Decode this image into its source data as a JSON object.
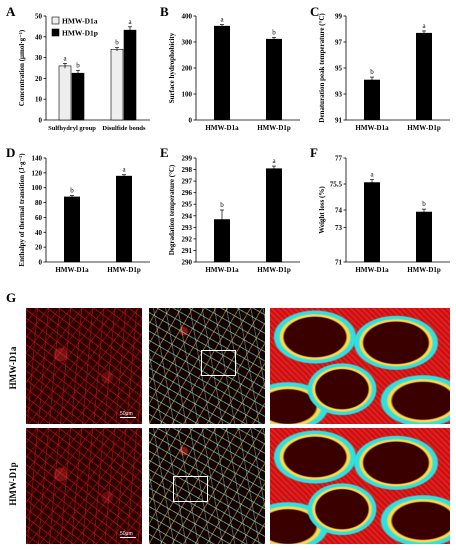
{
  "panel_letters": {
    "A": "A",
    "B": "B",
    "C": "C",
    "D": "D",
    "E": "E",
    "F": "F",
    "G": "G"
  },
  "chart_data": [
    {
      "panel": "A",
      "type": "bar",
      "categories": [
        "Sulfhydryl group",
        "Disulfide bonds"
      ],
      "series": [
        {
          "name": "HMW-D1a",
          "values": [
            26,
            34
          ],
          "errors": [
            1.2,
            0.8
          ],
          "letters": [
            "a",
            "b"
          ],
          "color": "#eeeeee"
        },
        {
          "name": "HMW-D1p",
          "values": [
            22.5,
            43.2
          ],
          "errors": [
            1.4,
            1.6
          ],
          "letters": [
            "b",
            "a"
          ],
          "color": "#000000"
        }
      ],
      "ylabel": "Concentration (μmol·g⁻¹)",
      "ylim": [
        0,
        50
      ],
      "yticks": [
        "0",
        "10",
        "20",
        "30",
        "40",
        "50"
      ],
      "legend": "top-left"
    },
    {
      "panel": "B",
      "type": "bar",
      "categories": [
        "HMW-D1a",
        "HMW-D1p"
      ],
      "values": [
        362,
        312
      ],
      "errors": [
        5,
        6
      ],
      "letters": [
        "a",
        "b"
      ],
      "ylabel": "Surface hydrophobicity",
      "ylim": [
        0,
        400
      ],
      "yticks": [
        "0",
        "100",
        "200",
        "300",
        "400"
      ]
    },
    {
      "panel": "C",
      "type": "bar",
      "categories": [
        "HMW-D1a",
        "HMW-D1p"
      ],
      "values": [
        94.1,
        97.7
      ],
      "errors": [
        0.2,
        0.15
      ],
      "letters": [
        "b",
        "a"
      ],
      "ylabel": "Denaturation peak temperature (°C)",
      "ylim": [
        91,
        99
      ],
      "yticks": [
        "91",
        "93",
        "95",
        "97",
        "99"
      ]
    },
    {
      "panel": "D",
      "type": "bar",
      "categories": [
        "HMW-D1a",
        "HMW-D1p"
      ],
      "values": [
        88,
        116
      ],
      "errors": [
        1.5,
        1.5
      ],
      "letters": [
        "b",
        "a"
      ],
      "ylabel": "Enthalpy of thermal transition (J·g⁻¹)",
      "ylim": [
        0,
        140
      ],
      "yticks": [
        "0",
        "20",
        "40",
        "60",
        "80",
        "100",
        "120",
        "140"
      ]
    },
    {
      "panel": "E",
      "type": "bar",
      "categories": [
        "HMW-D1a",
        "HMW-D1p"
      ],
      "values": [
        293.7,
        298.1
      ],
      "errors": [
        0.8,
        0.2
      ],
      "letters": [
        "b",
        "a"
      ],
      "ylabel": "Degradation temperature (°C)",
      "ylim": [
        290,
        299
      ],
      "yticks": [
        "290",
        "291",
        "292",
        "293",
        "294",
        "295",
        "296",
        "297",
        "298",
        "299"
      ]
    },
    {
      "panel": "F",
      "type": "bar",
      "categories": [
        "HMW-D1a",
        "HMW-D1p"
      ],
      "values": [
        75.6,
        73.9
      ],
      "errors": [
        0.15,
        0.15
      ],
      "letters": [
        "a",
        "b"
      ],
      "ylabel": "Weight loss (%)",
      "ylim": [
        71,
        77
      ],
      "yticks": [
        "71",
        "73",
        "74",
        "75.5",
        "77"
      ]
    }
  ],
  "micrographs": {
    "row_labels": [
      "HMW-D1a",
      "HMW-D1p"
    ],
    "scale_label": "50μm"
  }
}
